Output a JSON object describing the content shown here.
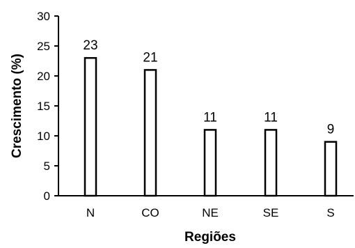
{
  "chart_data": {
    "type": "bar",
    "categories": [
      "N",
      "CO",
      "NE",
      "SE",
      "S"
    ],
    "values": [
      23,
      21,
      11,
      11,
      9
    ],
    "data_labels": [
      "23",
      "21",
      "11",
      "11",
      "9"
    ],
    "xlabel": "Regiões",
    "ylabel": "Crescimento (%)",
    "ylim": [
      0,
      30
    ],
    "yticks": [
      0,
      5,
      10,
      15,
      20,
      25,
      30
    ],
    "grid": false,
    "legend": "none",
    "colors": {
      "bar_fill": "#ffffff",
      "bar_stroke": "#000000",
      "axis": "#000000"
    }
  }
}
